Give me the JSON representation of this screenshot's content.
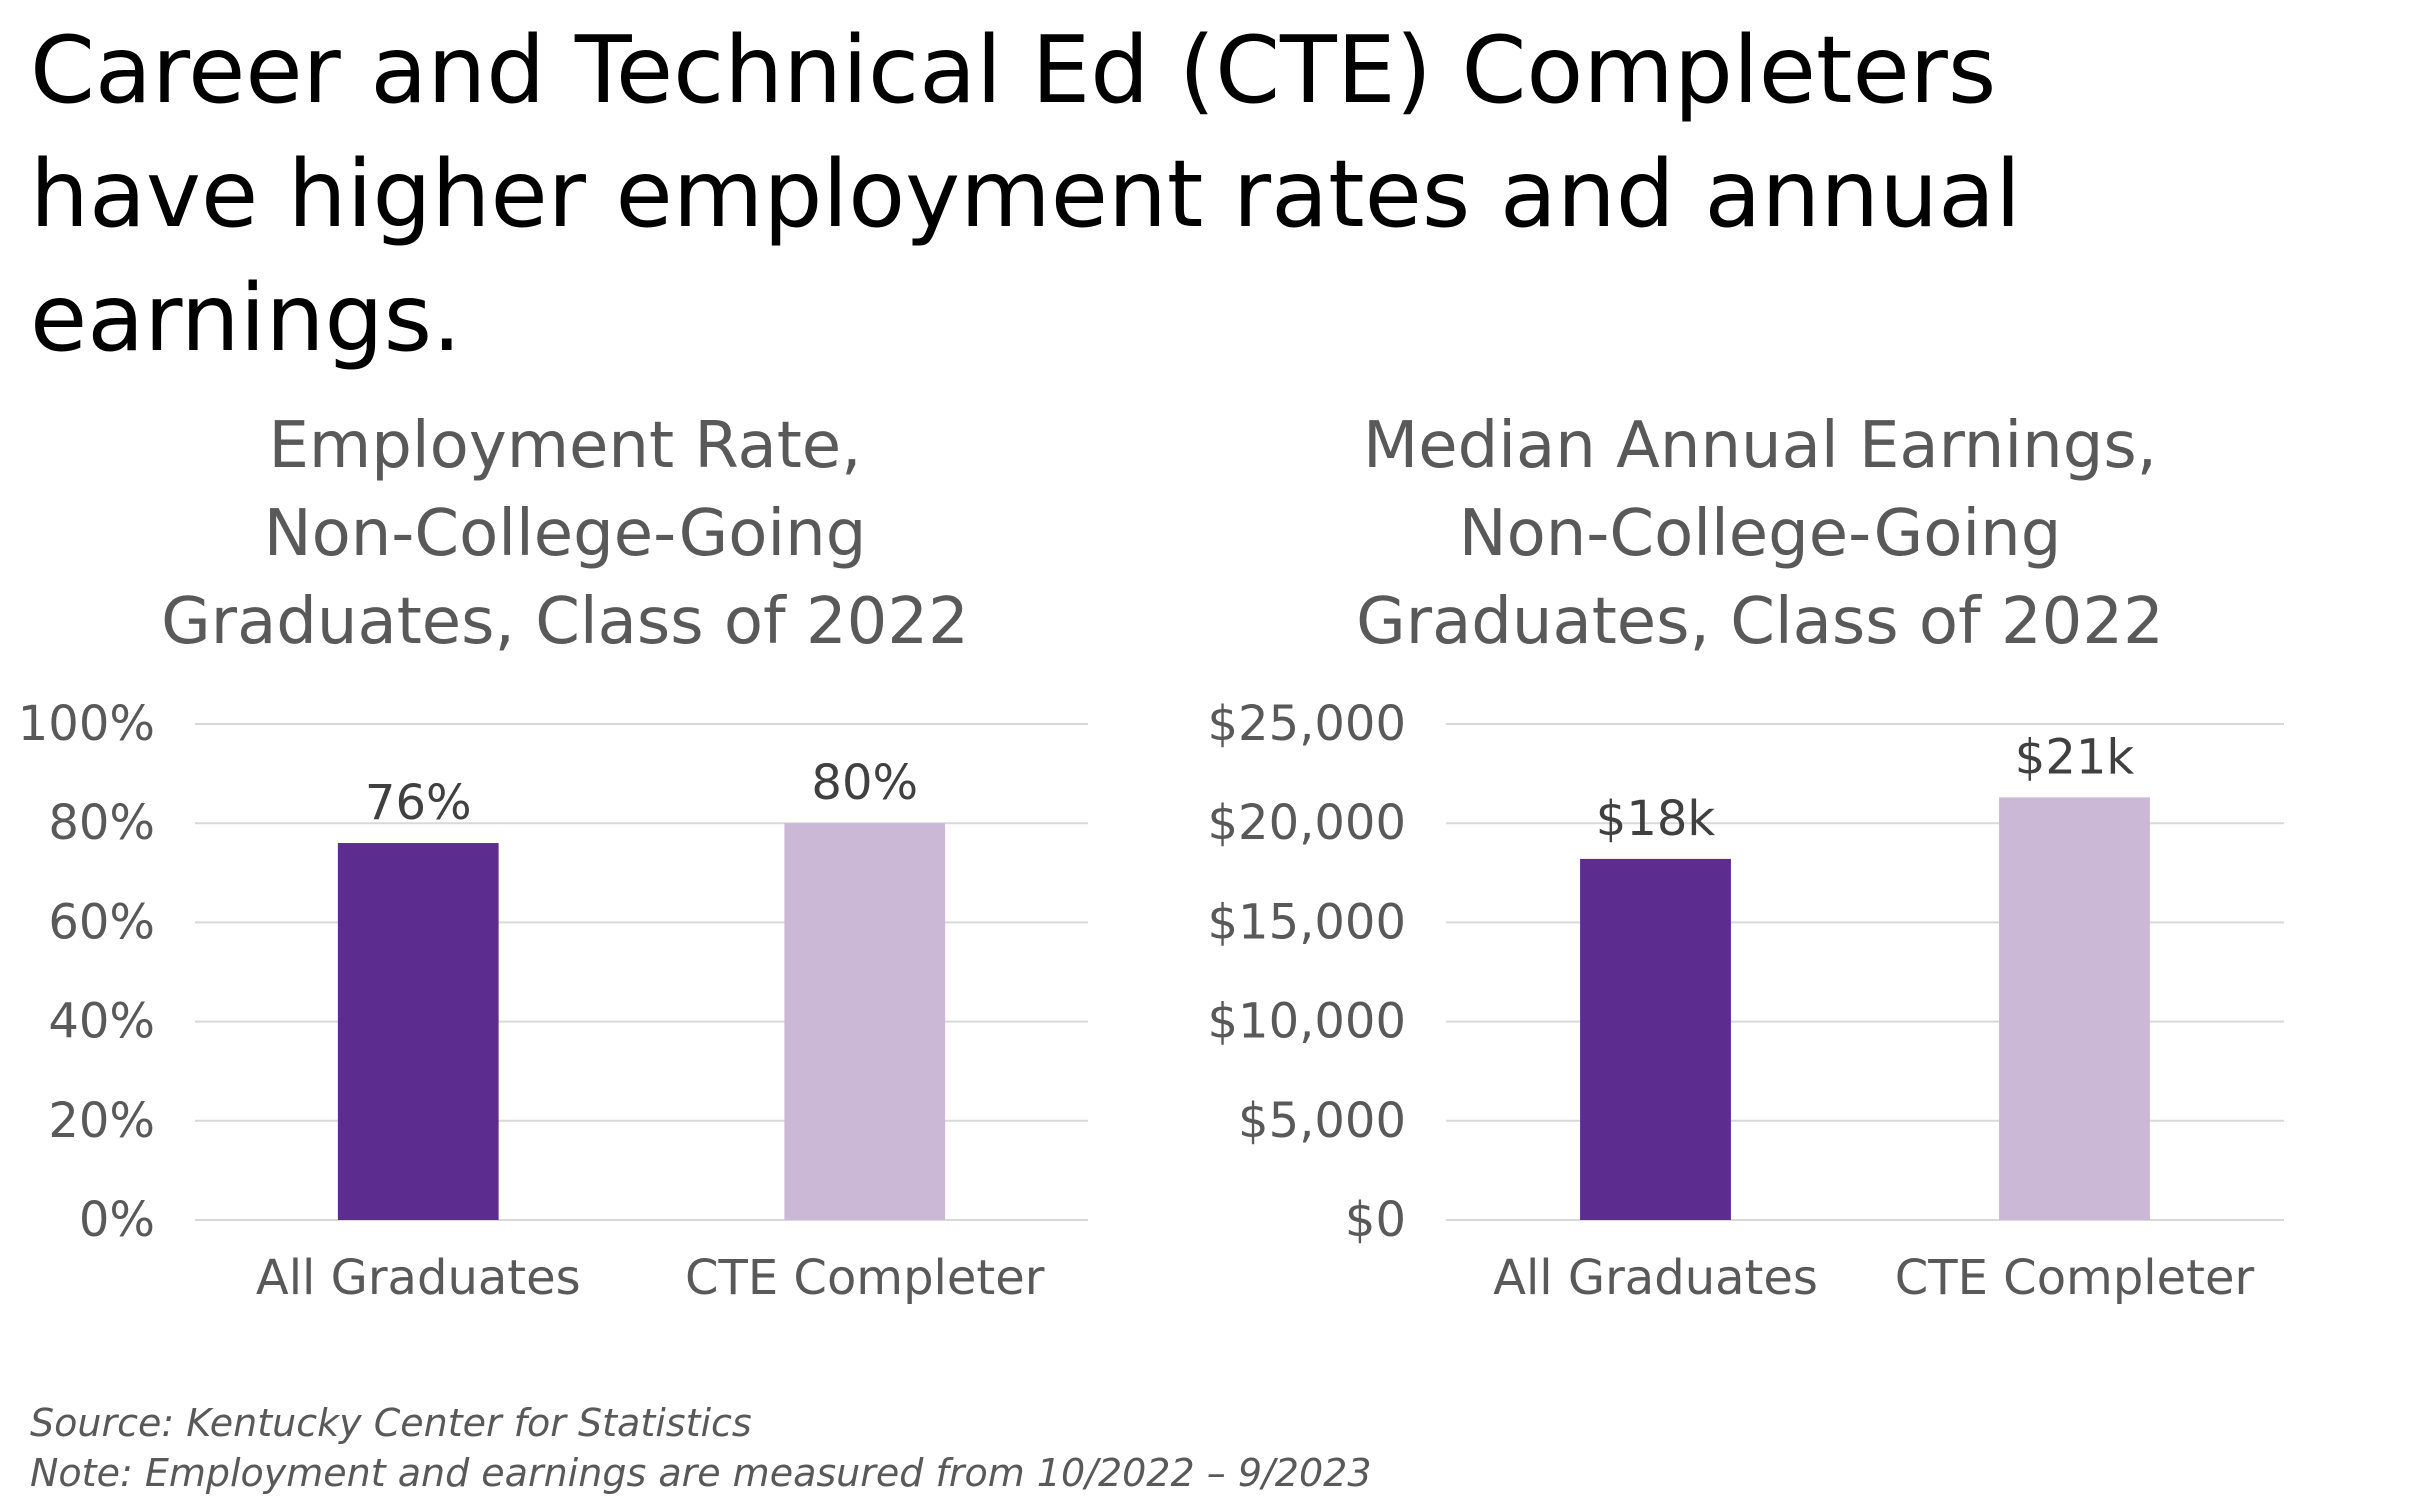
{
  "headline": {
    "lines": [
      "Career and Technical Ed (CTE) Completers",
      "have higher employment rates and annual",
      "earnings."
    ]
  },
  "footer": {
    "source": "Source: Kentucky Center for Statistics",
    "note": "Note: Employment and earnings are measured from 10/2022 – 9/2023"
  },
  "colors": {
    "all_graduates": "#5c2d8f",
    "cte_completer": "#cbb8d6",
    "grid": "#d9d9d9",
    "axis_text": "#595959",
    "label_text": "#404040"
  },
  "chart_data": [
    {
      "type": "bar",
      "title_lines": [
        "Employment Rate,",
        "Non-College-Going",
        "Graduates, Class of 2022"
      ],
      "categories": [
        "All Graduates",
        "CTE Completer"
      ],
      "values": [
        76,
        80
      ],
      "data_labels": [
        "76%",
        "80%"
      ],
      "yticks": [
        "0%",
        "20%",
        "40%",
        "60%",
        "80%",
        "100%"
      ],
      "ylim": [
        0,
        100
      ],
      "grid": true,
      "legend": "none"
    },
    {
      "type": "bar",
      "title_lines": [
        "Median Annual Earnings,",
        "Non-College-Going",
        "Graduates, Class of 2022"
      ],
      "categories": [
        "All Graduates",
        "CTE Completer"
      ],
      "values": [
        18200,
        21300
      ],
      "data_labels": [
        "$18k",
        "$21k"
      ],
      "yticks": [
        "$0",
        "$5,000",
        "$10,000",
        "$15,000",
        "$20,000",
        "$25,000"
      ],
      "ylim": [
        0,
        25000
      ],
      "grid": true,
      "legend": "none"
    }
  ]
}
